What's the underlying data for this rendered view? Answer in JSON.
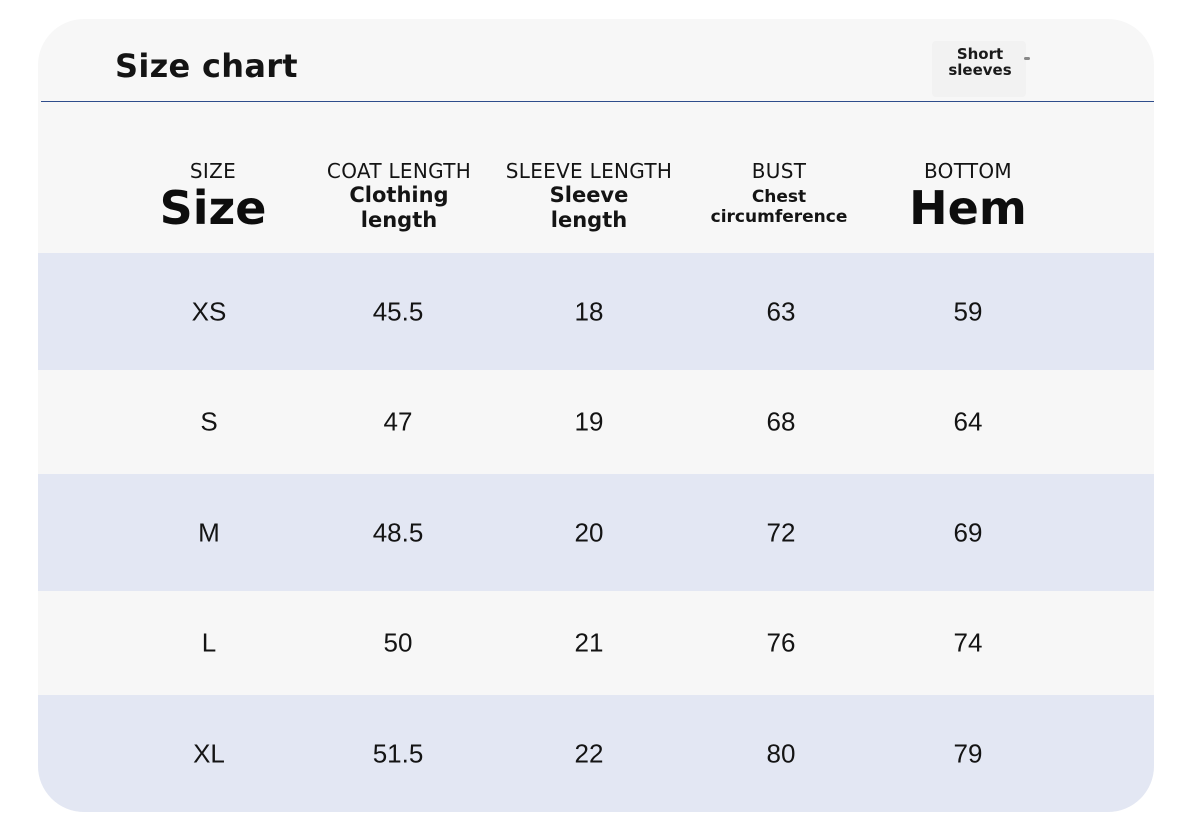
{
  "title": "Size chart",
  "tag": {
    "line1": "Short",
    "line2": "sleeves"
  },
  "colors": {
    "card_background": "#f7f7f7",
    "band_row": "#e3e7f3",
    "divider": "#2f4d8c",
    "text": "#141414"
  },
  "columns": [
    {
      "en": "SIZE",
      "label": "Size",
      "style": "big"
    },
    {
      "en": "COAT LENGTH",
      "label_line1": "Clothing",
      "label_line2": "length",
      "style": "mid"
    },
    {
      "en": "SLEEVE LENGTH",
      "label_line1": "Sleeve",
      "label_line2": "length",
      "style": "mid"
    },
    {
      "en": "BUST",
      "label_line1": "Chest",
      "label_line2": "circumference",
      "style": "small"
    },
    {
      "en": "BOTTOM",
      "label": "Hem",
      "style": "big"
    }
  ],
  "rows": [
    {
      "size": "XS",
      "coat_length": "45.5",
      "sleeve_length": "18",
      "bust": "63",
      "bottom": "59"
    },
    {
      "size": "S",
      "coat_length": "47",
      "sleeve_length": "19",
      "bust": "68",
      "bottom": "64"
    },
    {
      "size": "M",
      "coat_length": "48.5",
      "sleeve_length": "20",
      "bust": "72",
      "bottom": "69"
    },
    {
      "size": "L",
      "coat_length": "50",
      "sleeve_length": "21",
      "bust": "76",
      "bottom": "74"
    },
    {
      "size": "XL",
      "coat_length": "51.5",
      "sleeve_length": "22",
      "bust": "80",
      "bottom": "79"
    }
  ]
}
